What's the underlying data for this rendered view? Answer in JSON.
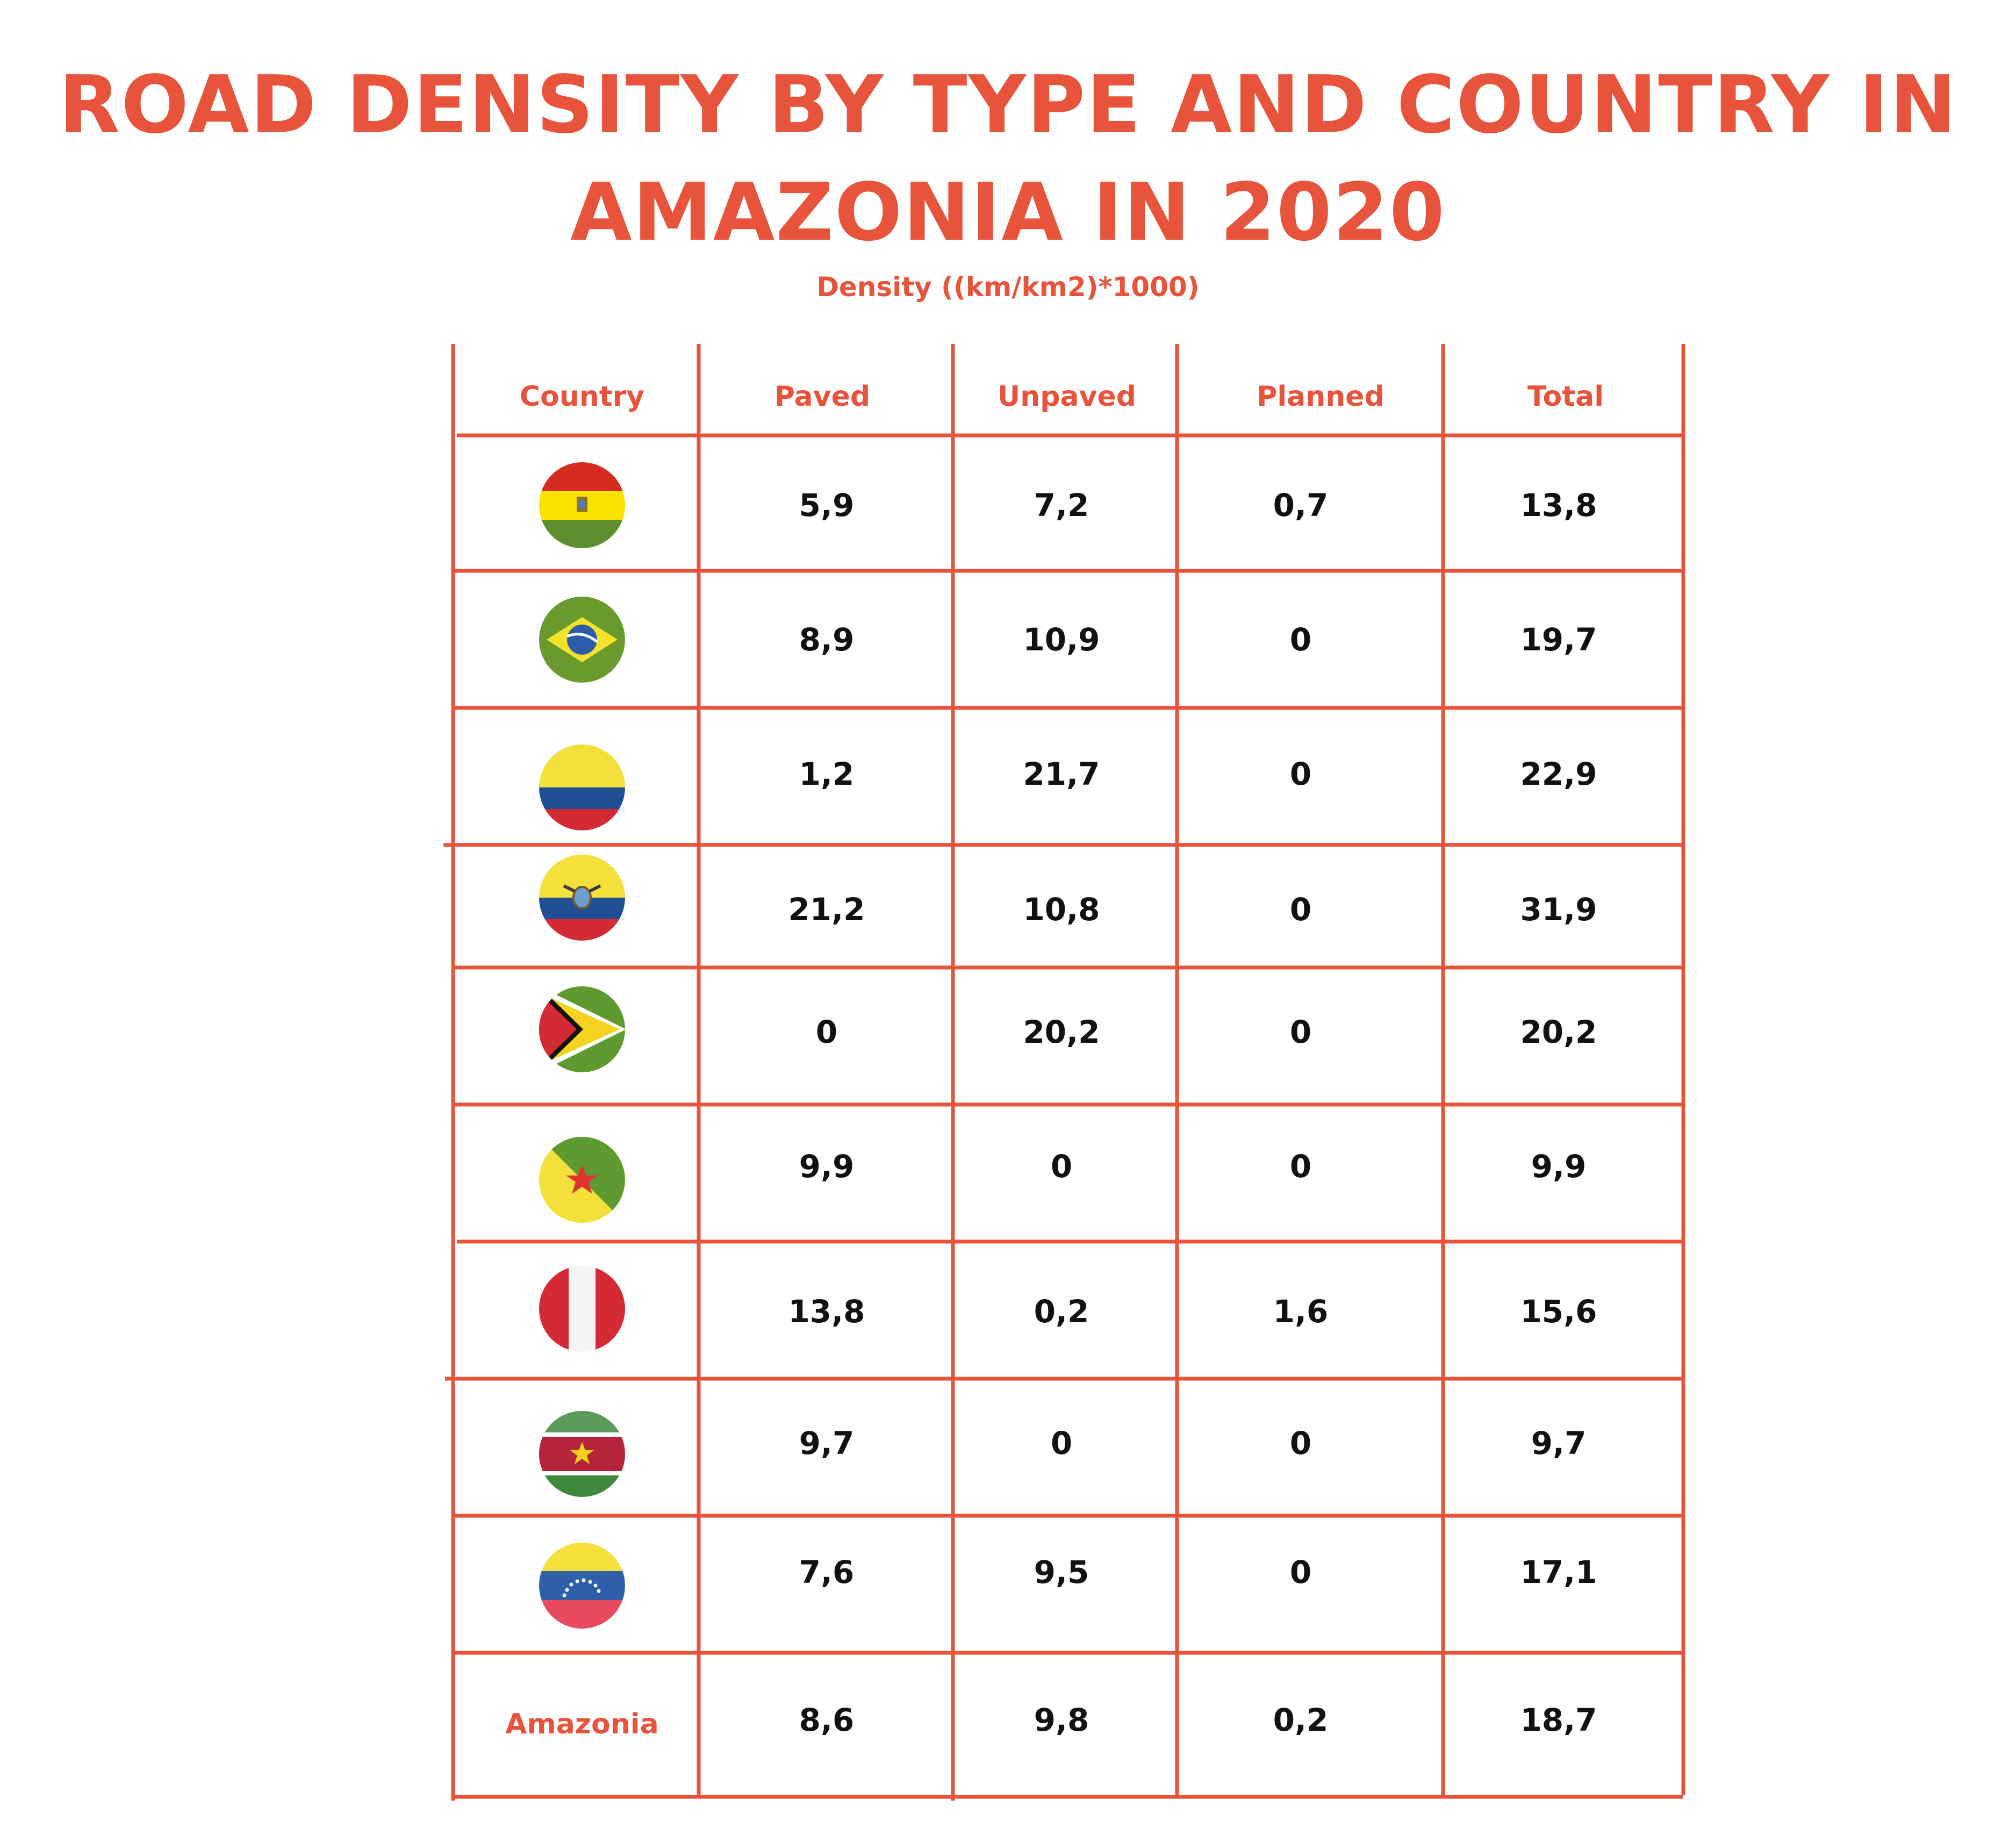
{
  "title": "ROAD DENSITY BY TYPE AND COUNTRY IN AMAZONIA IN 2020",
  "subtitle": "Density ((km/km2)*1000)",
  "colors": {
    "accent": "#e8533b",
    "value_text": "#111111",
    "background": "#ffffff"
  },
  "chart_data": {
    "type": "table",
    "title": "ROAD DENSITY BY TYPE AND COUNTRY IN AMAZONIA IN 2020",
    "subtitle": "Density ((km/km2)*1000)",
    "columns": [
      "Country",
      "Paved",
      "Unpaved",
      "Planned",
      "Total"
    ],
    "rows": [
      {
        "flag": "bolivia-flag-icon",
        "paved": "5,9",
        "unpaved": "7,2",
        "planned": "0,7",
        "total": "13,8"
      },
      {
        "flag": "brazil-flag-icon",
        "paved": "8,9",
        "unpaved": "10,9",
        "planned": "0",
        "total": "19,7"
      },
      {
        "flag": "colombia-flag-icon",
        "paved": "1,2",
        "unpaved": "21,7",
        "planned": "0",
        "total": "22,9"
      },
      {
        "flag": "ecuador-flag-icon",
        "paved": "21,2",
        "unpaved": "10,8",
        "planned": "0",
        "total": "31,9"
      },
      {
        "flag": "guyana-flag-icon",
        "paved": "0",
        "unpaved": "20,2",
        "planned": "0",
        "total": "20,2"
      },
      {
        "flag": "french-guiana-flag-icon",
        "paved": "9,9",
        "unpaved": "0",
        "planned": "0",
        "total": "9,9"
      },
      {
        "flag": "peru-flag-icon",
        "paved": "13,8",
        "unpaved": "0,2",
        "planned": "1,6",
        "total": "15,6"
      },
      {
        "flag": "suriname-flag-icon",
        "paved": "9,7",
        "unpaved": "0",
        "planned": "0",
        "total": "9,7"
      },
      {
        "flag": "venezuela-flag-icon",
        "paved": "7,6",
        "unpaved": "9,5",
        "planned": "0",
        "total": "17,1"
      },
      {
        "label": "Amazonia",
        "paved": "8,6",
        "unpaved": "9,8",
        "planned": "0,2",
        "total": "18,7"
      }
    ]
  }
}
